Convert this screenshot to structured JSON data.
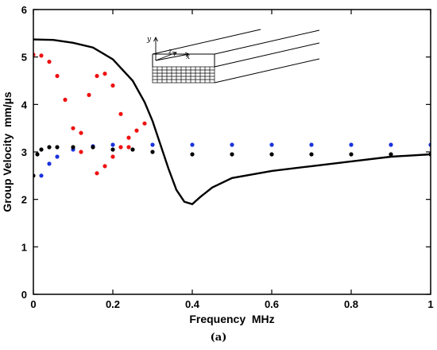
{
  "chart_data": {
    "type": "scatter",
    "xlabel": "Frequency  MHz",
    "ylabel": "Group Velocity  mm/µs",
    "caption": "(a)",
    "xlim": [
      0,
      1
    ],
    "ylim": [
      0,
      6
    ],
    "xticks": [
      {
        "value": 0,
        "label": "0"
      },
      {
        "value": 0.2,
        "label": "0.2"
      },
      {
        "value": 0.4,
        "label": "0.4"
      },
      {
        "value": 0.6,
        "label": "0.6"
      },
      {
        "value": 0.8,
        "label": "0.8"
      },
      {
        "value": 1,
        "label": "1"
      }
    ],
    "yticks": [
      {
        "value": 0,
        "label": "0"
      },
      {
        "value": 1,
        "label": "1"
      },
      {
        "value": 2,
        "label": "2"
      },
      {
        "value": 3,
        "label": "3"
      },
      {
        "value": 4,
        "label": "4"
      },
      {
        "value": 5,
        "label": "5"
      },
      {
        "value": 6,
        "label": "6"
      }
    ],
    "inset_axes": [
      "y",
      "z",
      "x"
    ],
    "colors": {
      "black": "#000000",
      "red": "#ee1111",
      "blue": "#1a33dd"
    },
    "series": [
      {
        "color": "black",
        "style": "line",
        "x": [
          0,
          0.05,
          0.1,
          0.15,
          0.2,
          0.25,
          0.28,
          0.3,
          0.32,
          0.34,
          0.36,
          0.38,
          0.4,
          0.42,
          0.45,
          0.5,
          0.6,
          0.7,
          0.8,
          0.9,
          1.0
        ],
        "y": [
          5.37,
          5.36,
          5.3,
          5.2,
          4.95,
          4.5,
          4.05,
          3.65,
          3.15,
          2.65,
          2.2,
          1.95,
          1.9,
          2.05,
          2.25,
          2.45,
          2.6,
          2.7,
          2.8,
          2.9,
          2.95
        ]
      },
      {
        "color": "black",
        "style": "dots",
        "x": [
          0.0,
          0.01,
          0.02,
          0.04,
          0.06,
          0.1,
          0.15,
          0.2,
          0.25,
          0.3,
          0.4,
          0.5,
          0.6,
          0.7,
          0.8,
          0.9,
          1.0
        ],
        "y": [
          2.5,
          2.95,
          3.05,
          3.1,
          3.1,
          3.1,
          3.1,
          3.05,
          3.05,
          3.0,
          2.95,
          2.95,
          2.95,
          2.95,
          2.95,
          2.95,
          2.95
        ]
      },
      {
        "color": "red",
        "style": "dots",
        "x": [
          0.0,
          0.02,
          0.04,
          0.06,
          0.08,
          0.1,
          0.12
        ],
        "y": [
          5.05,
          5.03,
          4.9,
          4.6,
          4.1,
          3.5,
          3.0
        ]
      },
      {
        "color": "red",
        "style": "dots",
        "x": [
          0.12,
          0.14,
          0.16,
          0.18,
          0.2,
          0.22,
          0.24
        ],
        "y": [
          3.4,
          4.2,
          4.6,
          4.65,
          4.4,
          3.8,
          3.1
        ]
      },
      {
        "color": "red",
        "style": "dots",
        "x": [
          0.16,
          0.18,
          0.2,
          0.22,
          0.24,
          0.26,
          0.28
        ],
        "y": [
          2.55,
          2.7,
          2.9,
          3.1,
          3.3,
          3.45,
          3.6
        ]
      },
      {
        "color": "blue",
        "style": "dots",
        "x": [
          0.02,
          0.04,
          0.06,
          0.1,
          0.15,
          0.2,
          0.3,
          0.4,
          0.5,
          0.6,
          0.7,
          0.8,
          0.9,
          1.0
        ],
        "y": [
          2.5,
          2.75,
          2.9,
          3.05,
          3.12,
          3.15,
          3.15,
          3.15,
          3.15,
          3.15,
          3.15,
          3.15,
          3.15,
          3.15
        ]
      }
    ]
  }
}
